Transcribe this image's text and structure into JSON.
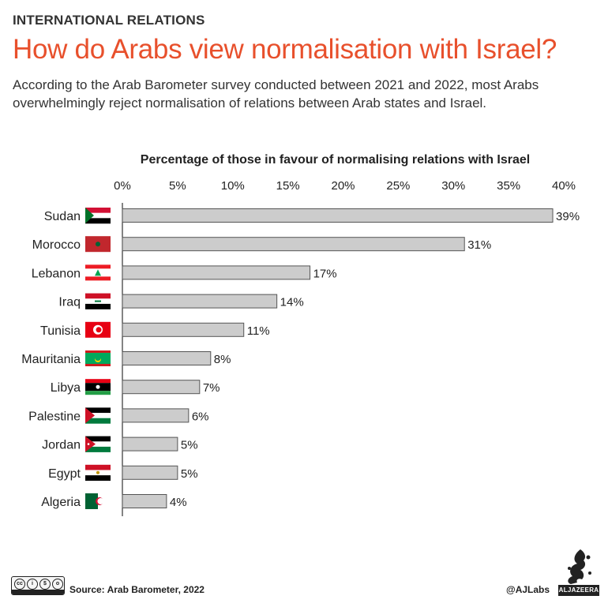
{
  "header": {
    "kicker": "INTERNATIONAL RELATIONS",
    "title": "How do Arabs view normalisation with Israel?",
    "subtitle": "According to the Arab Barometer survey conducted between 2021 and 2022, most Arabs overwhelmingly reject normalisation of relations between Arab states and Israel."
  },
  "footer": {
    "source": "Source: Arab Barometer, 2022",
    "handle": "@AJLabs",
    "brand": "ALJAZEERA",
    "license_icon": "creative-commons-by-nc-sa-icon",
    "logo_icon": "al-jazeera-calligraphy-icon"
  },
  "colors": {
    "title": "#e8502c",
    "bar_fill": "#cccccc",
    "bar_stroke": "#555555",
    "text": "#222222"
  },
  "chart_data": {
    "type": "bar",
    "orientation": "horizontal",
    "title": "Percentage of those in favour of normalising relations with Israel",
    "categories": [
      "Sudan",
      "Morocco",
      "Lebanon",
      "Iraq",
      "Tunisia",
      "Mauritania",
      "Libya",
      "Palestine",
      "Jordan",
      "Egypt",
      "Algeria"
    ],
    "values": [
      39,
      31,
      17,
      14,
      11,
      8,
      7,
      6,
      5,
      5,
      4
    ],
    "value_labels": [
      "39%",
      "31%",
      "17%",
      "14%",
      "11%",
      "8%",
      "7%",
      "6%",
      "5%",
      "5%",
      "4%"
    ],
    "flag_icons": [
      "sudan-flag-icon",
      "morocco-flag-icon",
      "lebanon-flag-icon",
      "iraq-flag-icon",
      "tunisia-flag-icon",
      "mauritania-flag-icon",
      "libya-flag-icon",
      "palestine-flag-icon",
      "jordan-flag-icon",
      "egypt-flag-icon",
      "algeria-flag-icon"
    ],
    "xticks": [
      0,
      5,
      10,
      15,
      20,
      25,
      30,
      35,
      40
    ],
    "xtick_labels": [
      "0%",
      "5%",
      "10%",
      "15%",
      "20%",
      "25%",
      "30%",
      "35%",
      "40%"
    ],
    "xlim": [
      0,
      40
    ],
    "xlabel": "",
    "ylabel": "",
    "grid": false,
    "legend": "none"
  }
}
